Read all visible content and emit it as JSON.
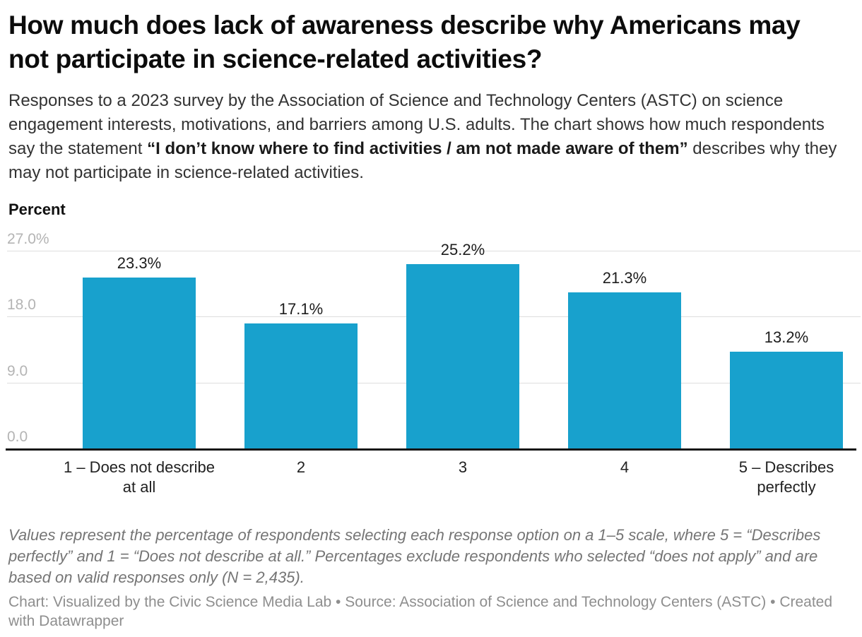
{
  "header": {
    "title": "How much does lack of awareness describe why Americans may not participate in science-related activities?",
    "description_prefix": "Responses to a 2023 survey by the Association of Science and Technology Centers (ASTC) on science engagement interests, motivations, and barriers among U.S. adults. The chart shows how much respondents say the statement ",
    "description_bold": "“I don’t know where to find activities / am not made aware of them”",
    "description_suffix": " describes why they may not participate in science-related activities."
  },
  "chart_data": {
    "type": "bar",
    "title": "How much does lack of awareness describe why Americans may not participate in science-related activities?",
    "axis_title": "Percent",
    "categories": [
      "1 – Does not describe at all",
      "2",
      "3",
      "4",
      "5 – Describes perfectly"
    ],
    "values": [
      23.3,
      17.1,
      25.2,
      21.3,
      13.2
    ],
    "value_labels": [
      "23.3%",
      "17.1%",
      "25.2%",
      "21.3%",
      "13.2%"
    ],
    "y_ticks": [
      {
        "value": 27,
        "label": "27.0%"
      },
      {
        "value": 18,
        "label": "18.0"
      },
      {
        "value": 9,
        "label": "9.0"
      },
      {
        "value": 0,
        "label": "0.0"
      }
    ],
    "ylim": [
      0,
      27
    ],
    "xlabel": "",
    "ylabel": "Percent",
    "grid": true,
    "legend": "none",
    "bar_color": "#18a1cd",
    "gridline_color": "#dedede",
    "baseline_color": "#161616",
    "tick_label_color": "#b4b4b4"
  },
  "footnote": "Values represent the percentage of respondents selecting each response option on a 1–5 scale, where 5 = “Describes perfectly” and 1 = “Does not describe at all.” Percentages exclude respondents who selected “does not apply” and are based on valid responses only (N = 2,435).",
  "credit": "Chart: Visualized by the Civic Science Media Lab • Source: Association of Science and Technology Centers (ASTC)  • Created with Datawrapper"
}
